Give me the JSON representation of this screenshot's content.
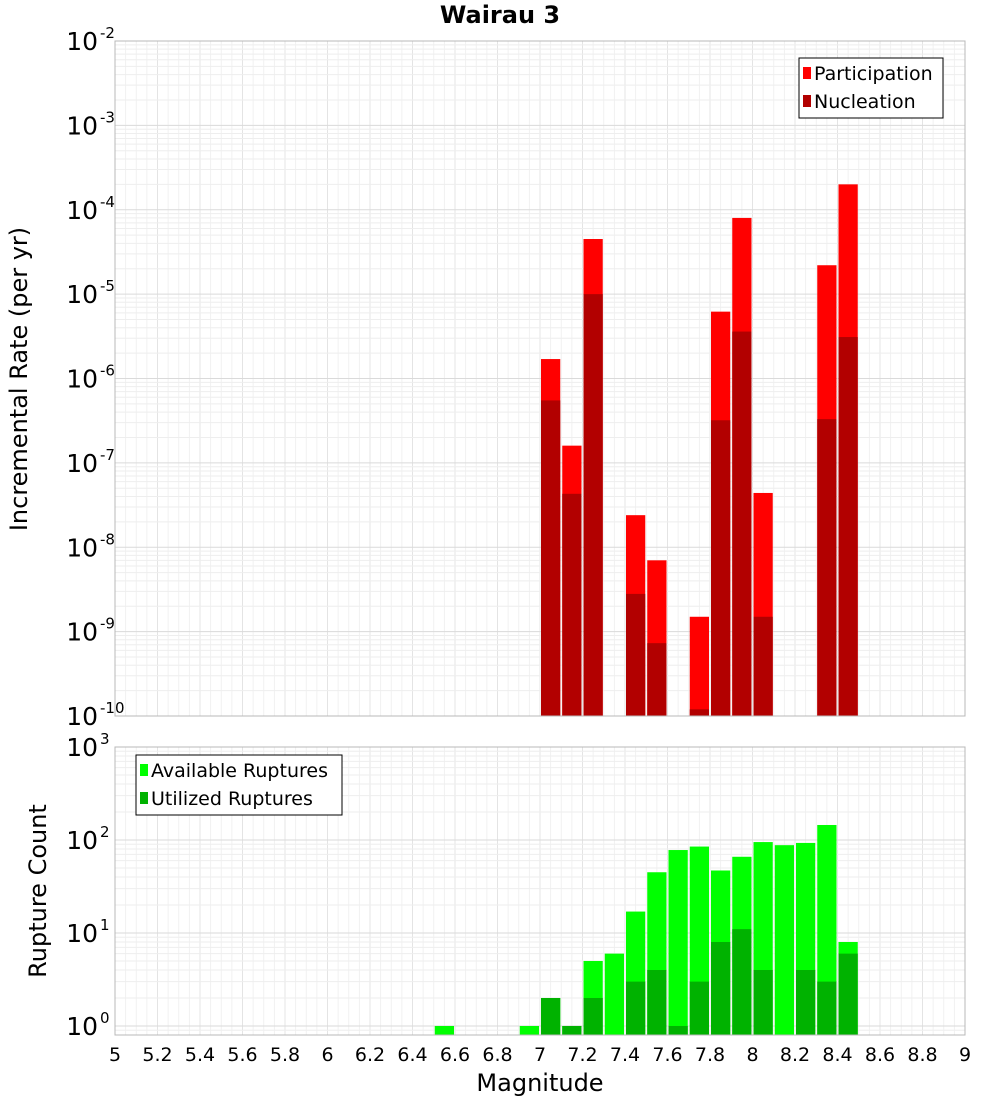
{
  "chart_data": {
    "title": "Wairau 3",
    "type": "bar",
    "xlabel": "Magnitude",
    "xlim": [
      5,
      9
    ],
    "x_ticks": [
      "5",
      "5.2",
      "5.4",
      "5.6",
      "5.8",
      "6",
      "6.2",
      "6.4",
      "6.6",
      "6.8",
      "7",
      "7.2",
      "7.4",
      "7.6",
      "7.8",
      "8",
      "8.2",
      "8.4",
      "8.6",
      "8.8",
      "9"
    ],
    "grid": true,
    "bar_width": 0.1,
    "panels": [
      {
        "id": "rates",
        "type": "bar",
        "ylabel": "Incremental Rate (per yr)",
        "scale": "log",
        "ylim": [
          1e-10,
          0.01
        ],
        "y_ticks": [
          {
            "base": "10",
            "exp": "-2"
          },
          {
            "base": "10",
            "exp": "-3"
          },
          {
            "base": "10",
            "exp": "-4"
          },
          {
            "base": "10",
            "exp": "-5"
          },
          {
            "base": "10",
            "exp": "-6"
          },
          {
            "base": "10",
            "exp": "-7"
          },
          {
            "base": "10",
            "exp": "-8"
          },
          {
            "base": "10",
            "exp": "-9"
          },
          {
            "base": "10",
            "exp": "-10"
          }
        ],
        "legend_position": "top-right",
        "x": [
          7.05,
          7.15,
          7.25,
          7.45,
          7.55,
          7.75,
          7.85,
          7.95,
          8.05,
          8.35,
          8.45
        ],
        "series": [
          {
            "name": "Participation",
            "color": "#ff0000",
            "values": [
              1.7e-06,
              1.6e-07,
              4.5e-05,
              2.4e-08,
              7e-09,
              1.5e-09,
              6.2e-06,
              8e-05,
              4.4e-08,
              2.2e-05,
              0.0002
            ]
          },
          {
            "name": "Nucleation",
            "color": "#b20000",
            "values": [
              5.5e-07,
              4.3e-08,
              1e-05,
              2.8e-09,
              7.3e-10,
              1.2e-10,
              3.2e-07,
              3.6e-06,
              1.5e-09,
              3.3e-07,
              3.1e-06
            ]
          }
        ]
      },
      {
        "id": "counts",
        "type": "bar",
        "ylabel": "Rupture Count",
        "scale": "log",
        "ylim": [
          0.8,
          1000
        ],
        "y_ticks": [
          {
            "base": "10",
            "exp": "3"
          },
          {
            "base": "10",
            "exp": "2"
          },
          {
            "base": "10",
            "exp": "1"
          },
          {
            "base": "10",
            "exp": "0"
          }
        ],
        "legend_position": "top-left",
        "x": [
          6.55,
          6.95,
          7.05,
          7.15,
          7.25,
          7.35,
          7.45,
          7.55,
          7.65,
          7.75,
          7.85,
          7.95,
          8.05,
          8.15,
          8.25,
          8.35,
          8.45
        ],
        "series": [
          {
            "name": "Available Ruptures",
            "color": "#00ff00",
            "values": [
              1,
              1,
              2,
              1,
              5,
              6,
              17,
              45,
              78,
              85,
              47,
              66,
              95,
              88,
              93,
              145,
              8
            ]
          },
          {
            "name": "Utilized Ruptures",
            "color": "#00b200",
            "values": [
              0,
              0,
              2,
              1,
              2,
              0,
              3,
              4,
              1,
              3,
              8,
              11,
              4,
              0,
              4,
              3,
              6
            ]
          }
        ]
      }
    ]
  }
}
